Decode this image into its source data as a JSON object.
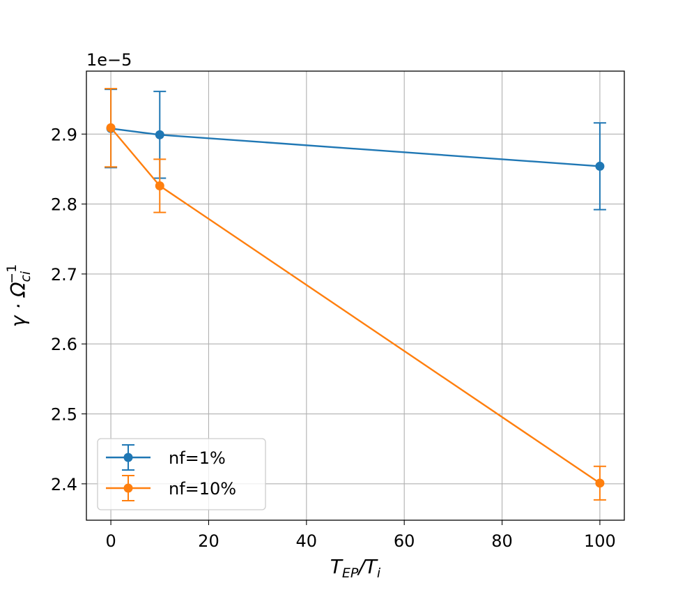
{
  "chart_data": {
    "type": "line",
    "title": "",
    "xlabel": "T_EP/T_i",
    "ylabel": "γ · Ω_ci^-1",
    "xlabel_parts": {
      "main": "T",
      "sub": "EP",
      "mid": "/T",
      "sub2": "i"
    },
    "ylabel_parts": {
      "main": "γ · Ω",
      "sub": "ci",
      "sup": "−1"
    },
    "y_offset_text": "1e−5",
    "y_scale_factor": 1e-05,
    "xlim": [
      -5,
      105
    ],
    "ylim": [
      2.348,
      2.99
    ],
    "x_ticks": [
      0,
      20,
      40,
      60,
      80,
      100
    ],
    "x_tick_labels": [
      "0",
      "20",
      "40",
      "60",
      "80",
      "100"
    ],
    "y_ticks": [
      2.4,
      2.5,
      2.6,
      2.7,
      2.8,
      2.9
    ],
    "y_tick_labels": [
      "2.4",
      "2.5",
      "2.6",
      "2.7",
      "2.8",
      "2.9"
    ],
    "grid": true,
    "legend_position": "lower-left",
    "x": [
      0,
      10,
      100
    ],
    "series": [
      {
        "name": "nf=1%",
        "color": "#1f77b4",
        "values": [
          2.908,
          2.899,
          2.854
        ],
        "error": [
          0.056,
          0.062,
          0.062
        ]
      },
      {
        "name": "nf=10%",
        "color": "#ff7f0e",
        "values": [
          2.909,
          2.826,
          2.401
        ],
        "error": [
          0.056,
          0.038,
          0.024
        ]
      }
    ]
  }
}
